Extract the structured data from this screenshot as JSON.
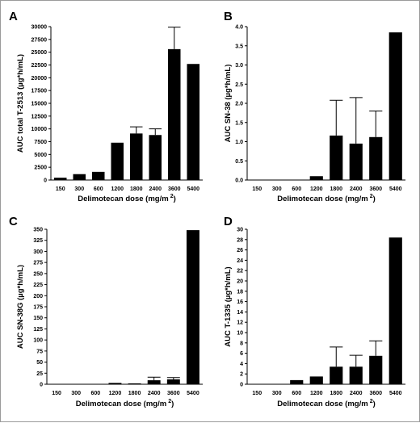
{
  "chart_data": [
    {
      "panel": "A",
      "type": "bar",
      "xlabel": "Delimotecan dose (mg/m",
      "xlabel_superscript": "2",
      "xlabel_close": ")",
      "ylabel": "AUC total T-2513 (µg*h/mL)",
      "categories": [
        "150",
        "300",
        "600",
        "1200",
        "1800",
        "2400",
        "3600",
        "5400"
      ],
      "values": [
        450,
        1150,
        1600,
        7300,
        9100,
        8800,
        25600,
        22700
      ],
      "errors": [
        0,
        0,
        0,
        0,
        1300,
        1200,
        4300,
        0
      ],
      "ylim": [
        0,
        30000
      ],
      "yticks": [
        "0",
        "2500",
        "5000",
        "7500",
        "10000",
        "12500",
        "15000",
        "17500",
        "20000",
        "22500",
        "25000",
        "27500",
        "30000"
      ],
      "bar_color": "#000000"
    },
    {
      "panel": "B",
      "type": "bar",
      "xlabel": "Delimotecan dose (mg/m",
      "xlabel_superscript": "2",
      "xlabel_close": ")",
      "ylabel": "AUC SN-38 (µg*h/mL)",
      "categories": [
        "150",
        "300",
        "600",
        "1200",
        "1800",
        "2400",
        "3600",
        "5400"
      ],
      "values": [
        0,
        0,
        0,
        0.1,
        1.16,
        0.95,
        1.12,
        3.85
      ],
      "errors": [
        0,
        0,
        0,
        0,
        0.92,
        1.2,
        0.68,
        0
      ],
      "ylim": [
        0,
        4.0
      ],
      "yticks": [
        "0.0",
        "0.5",
        "1.0",
        "1.5",
        "2.0",
        "2.5",
        "3.0",
        "3.5",
        "4.0"
      ],
      "bar_color": "#000000"
    },
    {
      "panel": "C",
      "type": "bar",
      "xlabel": "Delimotecan dose (mg/m",
      "xlabel_superscript": "2",
      "xlabel_close": ")",
      "ylabel": "AUC SN-38G (µg*h/mL)",
      "categories": [
        "150",
        "300",
        "600",
        "1200",
        "1800",
        "2400",
        "3600",
        "5400"
      ],
      "values": [
        0,
        0,
        0,
        3,
        2,
        9,
        11,
        348
      ],
      "errors": [
        0,
        0,
        0,
        0,
        0,
        7,
        4,
        0
      ],
      "ylim": [
        0,
        350
      ],
      "yticks": [
        "0",
        "25",
        "50",
        "75",
        "100",
        "125",
        "150",
        "175",
        "200",
        "225",
        "250",
        "275",
        "300",
        "325",
        "350"
      ],
      "bar_color": "#000000"
    },
    {
      "panel": "D",
      "type": "bar",
      "xlabel": "Delimotecan dose (mg/m",
      "xlabel_superscript": "2",
      "xlabel_close": ")",
      "ylabel": "AUC T-1335 (µg*h/mL)",
      "categories": [
        "150",
        "300",
        "600",
        "1200",
        "1800",
        "2400",
        "3600",
        "5400"
      ],
      "values": [
        0,
        0,
        0.8,
        1.5,
        3.4,
        3.4,
        5.5,
        28.4
      ],
      "errors": [
        0,
        0,
        0,
        0,
        3.8,
        2.2,
        2.9,
        0
      ],
      "ylim": [
        0,
        30
      ],
      "yticks": [
        "0",
        "2",
        "4",
        "6",
        "8",
        "10",
        "12",
        "14",
        "16",
        "18",
        "20",
        "22",
        "24",
        "26",
        "28",
        "30"
      ],
      "bar_color": "#000000"
    }
  ]
}
